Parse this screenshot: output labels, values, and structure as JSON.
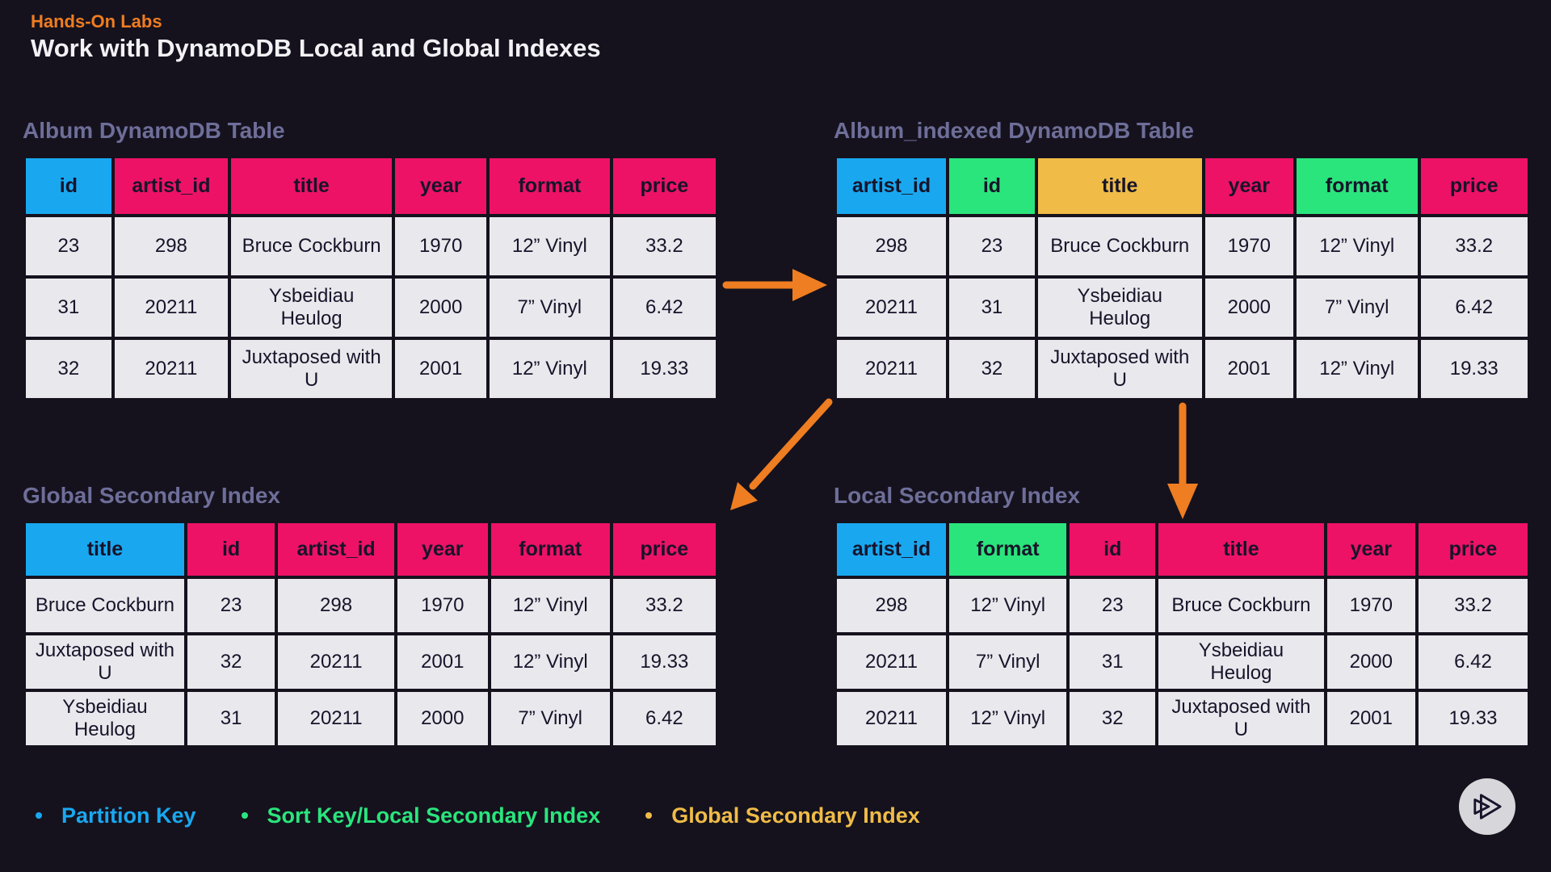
{
  "page": {
    "eyebrow": "Hands-On Labs",
    "title": "Work with DynamoDB Local and Global Indexes"
  },
  "colors": {
    "background": "#15121e",
    "title_white": "#f2f2f5",
    "accent_orange": "#ef7d21",
    "table_title_slate": "#6e6e99",
    "attribute_pink": "#ed1266",
    "partition_key_blue": "#19a8f0",
    "sort_key_green": "#2ae57c",
    "gsi_yellow": "#f0bc47",
    "cell_bg": "#e9e9ed",
    "cell_text": "#17142a",
    "play_circle": "#d7d7db"
  },
  "tables": [
    {
      "title": "Album DynamoDB Table",
      "columns": [
        {
          "label": "id",
          "key_type": "partition_key_blue"
        },
        {
          "label": "artist_id",
          "key_type": "attribute_pink"
        },
        {
          "label": "title",
          "key_type": "attribute_pink"
        },
        {
          "label": "year",
          "key_type": "attribute_pink"
        },
        {
          "label": "format",
          "key_type": "attribute_pink"
        },
        {
          "label": "price",
          "key_type": "attribute_pink"
        }
      ],
      "rows": [
        [
          "23",
          "298",
          "Bruce Cockburn",
          "1970",
          "12” Vinyl",
          "33.2"
        ],
        [
          "31",
          "20211",
          "Ysbeidiau Heulog",
          "2000",
          "7” Vinyl",
          "6.42"
        ],
        [
          "32",
          "20211",
          "Juxtaposed with U",
          "2001",
          "12” Vinyl",
          "19.33"
        ]
      ]
    },
    {
      "title": "Album_indexed DynamoDB Table",
      "columns": [
        {
          "label": "artist_id",
          "key_type": "partition_key_blue"
        },
        {
          "label": "id",
          "key_type": "sort_key_green"
        },
        {
          "label": "title",
          "key_type": "gsi_yellow"
        },
        {
          "label": "year",
          "key_type": "attribute_pink"
        },
        {
          "label": "format",
          "key_type": "sort_key_green"
        },
        {
          "label": "price",
          "key_type": "attribute_pink"
        }
      ],
      "rows": [
        [
          "298",
          "23",
          "Bruce Cockburn",
          "1970",
          "12” Vinyl",
          "33.2"
        ],
        [
          "20211",
          "31",
          "Ysbeidiau Heulog",
          "2000",
          "7” Vinyl",
          "6.42"
        ],
        [
          "20211",
          "32",
          "Juxtaposed with U",
          "2001",
          "12” Vinyl",
          "19.33"
        ]
      ]
    },
    {
      "title": "Global Secondary Index",
      "columns": [
        {
          "label": "title",
          "key_type": "partition_key_blue"
        },
        {
          "label": "id",
          "key_type": "attribute_pink"
        },
        {
          "label": "artist_id",
          "key_type": "attribute_pink"
        },
        {
          "label": "year",
          "key_type": "attribute_pink"
        },
        {
          "label": "format",
          "key_type": "attribute_pink"
        },
        {
          "label": "price",
          "key_type": "attribute_pink"
        }
      ],
      "rows": [
        [
          "Bruce Cockburn",
          "23",
          "298",
          "1970",
          "12” Vinyl",
          "33.2"
        ],
        [
          "Juxtaposed with U",
          "32",
          "20211",
          "2001",
          "12” Vinyl",
          "19.33"
        ],
        [
          "Ysbeidiau Heulog",
          "31",
          "20211",
          "2000",
          "7” Vinyl",
          "6.42"
        ]
      ]
    },
    {
      "title": "Local Secondary Index",
      "columns": [
        {
          "label": "artist_id",
          "key_type": "partition_key_blue"
        },
        {
          "label": "format",
          "key_type": "sort_key_green"
        },
        {
          "label": "id",
          "key_type": "attribute_pink"
        },
        {
          "label": "title",
          "key_type": "attribute_pink"
        },
        {
          "label": "year",
          "key_type": "attribute_pink"
        },
        {
          "label": "price",
          "key_type": "attribute_pink"
        }
      ],
      "rows": [
        [
          "298",
          "12” Vinyl",
          "23",
          "Bruce Cockburn",
          "1970",
          "33.2"
        ],
        [
          "20211",
          "7” Vinyl",
          "31",
          "Ysbeidiau Heulog",
          "2000",
          "6.42"
        ],
        [
          "20211",
          "12” Vinyl",
          "32",
          "Juxtaposed with U",
          "2001",
          "19.33"
        ]
      ]
    }
  ],
  "legend": {
    "items": [
      {
        "label": "Partition Key",
        "color": "partition_key_blue"
      },
      {
        "label": "Sort Key/Local Secondary Index",
        "color": "sort_key_green"
      },
      {
        "label": "Global Secondary Index",
        "color": "gsi_yellow"
      }
    ]
  },
  "icons": {
    "arrows": [
      "arrow-right-icon",
      "arrow-down-left-icon",
      "arrow-down-icon"
    ],
    "play_button": "pluralsight-play-icon"
  }
}
